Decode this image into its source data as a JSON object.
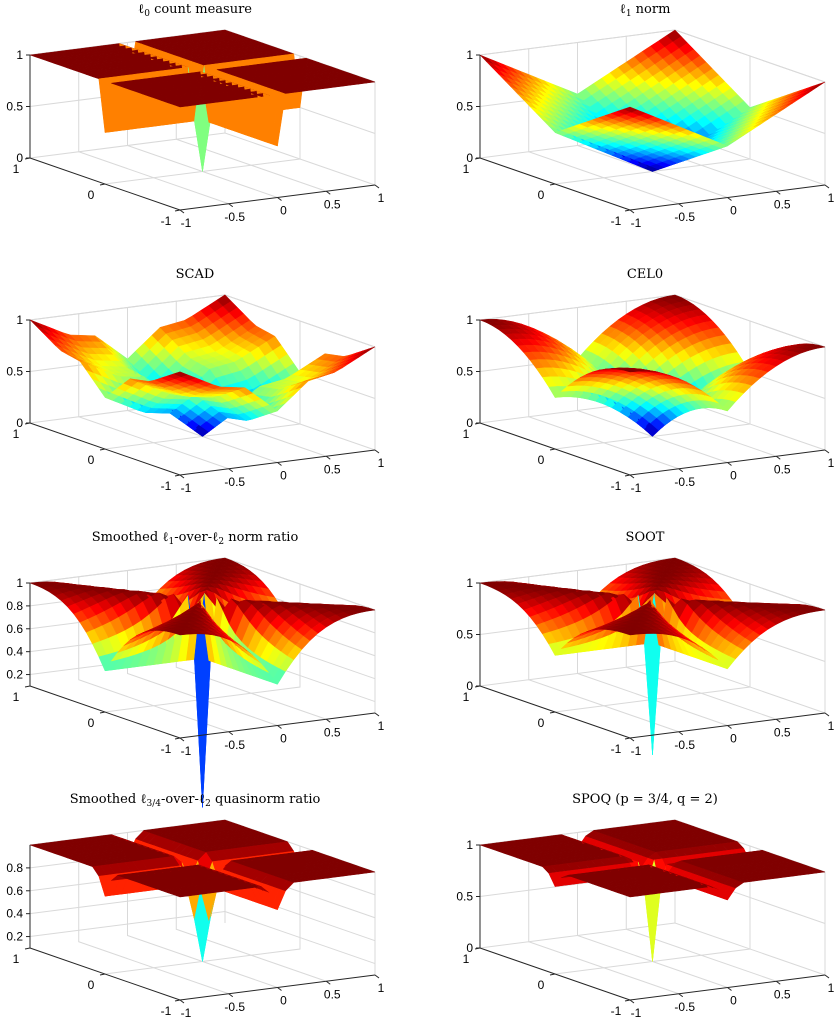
{
  "chart_data": [
    {
      "id": "l0",
      "type": "surface3d",
      "title_prefix": "ℓ",
      "title_sub": "0",
      "title_rest": " count measure",
      "xlim": [
        -1,
        1
      ],
      "ylim": [
        -1,
        1
      ],
      "zlim": [
        0,
        1
      ],
      "xticks": [
        "-1",
        "-0.5",
        "0",
        "0.5",
        "1"
      ],
      "yticks": [
        "-1",
        "0",
        "1"
      ],
      "zticks": [
        "0",
        "0.5",
        "1"
      ],
      "colormap": "jet",
      "shape": "count measure: 0 at origin, 1 elsewhere (0.5 on axes)",
      "peak_z": 1,
      "min_z": 0
    },
    {
      "id": "l1",
      "type": "surface3d",
      "title_prefix": "ℓ",
      "title_sub": "1",
      "title_rest": " norm",
      "xlim": [
        -1,
        1
      ],
      "ylim": [
        -1,
        1
      ],
      "zlim": [
        0,
        1
      ],
      "xticks": [
        "-1",
        "-0.5",
        "0",
        "0.5",
        "1"
      ],
      "yticks": [
        "-1",
        "0",
        "1"
      ],
      "zticks": [
        "0",
        "0.5",
        "1"
      ],
      "colormap": "jet",
      "shape": "(|x|+|y|)/2",
      "peak_z": 1,
      "min_z": 0
    },
    {
      "id": "scad",
      "type": "surface3d",
      "title": "SCAD",
      "xlim": [
        -1,
        1
      ],
      "ylim": [
        -1,
        1
      ],
      "zlim": [
        0,
        1
      ],
      "xticks": [
        "-1",
        "-0.5",
        "0",
        "0.5",
        "1"
      ],
      "yticks": [
        "-1",
        "0",
        "1"
      ],
      "zticks": [
        "0",
        "0.5",
        "1"
      ],
      "colormap": "jet",
      "shape": "SCAD penalty",
      "peak_z": 1,
      "min_z": 0
    },
    {
      "id": "cel0",
      "type": "surface3d",
      "title": "CEL0",
      "xlim": [
        -1,
        1
      ],
      "ylim": [
        -1,
        1
      ],
      "zlim": [
        0,
        1
      ],
      "xticks": [
        "-1",
        "-0.5",
        "0",
        "0.5",
        "1"
      ],
      "yticks": [
        "-1",
        "0",
        "1"
      ],
      "zticks": [
        "0",
        "0.5",
        "1"
      ],
      "colormap": "jet",
      "shape": "CEL0 penalty",
      "peak_z": 1,
      "min_z": 0
    },
    {
      "id": "l1l2",
      "type": "surface3d",
      "title_prefix": "Smoothed ℓ",
      "title_sub": "1",
      "title_mid": "-over-ℓ",
      "title_sub2": "2",
      "title_rest": " norm ratio",
      "xlim": [
        -1,
        1
      ],
      "ylim": [
        -1,
        1
      ],
      "zlim": [
        0.1,
        1
      ],
      "xticks": [
        "-1",
        "-0.5",
        "0",
        "0.5",
        "1"
      ],
      "yticks": [
        "-1",
        "0",
        "1"
      ],
      "zticks": [
        "0.2",
        "0.4",
        "0.6",
        "0.8",
        "1"
      ],
      "colormap": "jet",
      "shape": "smoothed l1/l2 ratio",
      "peak_z": 1,
      "min_z": 0.1
    },
    {
      "id": "soot",
      "type": "surface3d",
      "title": "SOOT",
      "xlim": [
        -1,
        1
      ],
      "ylim": [
        -1,
        1
      ],
      "zlim": [
        0,
        1
      ],
      "xticks": [
        "-1",
        "-0.5",
        "0",
        "0.5",
        "1"
      ],
      "yticks": [
        "-1",
        "0",
        "1"
      ],
      "zticks": [
        "0",
        "0.5",
        "1"
      ],
      "colormap": "jet",
      "shape": "SOOT",
      "peak_z": 1,
      "min_z": 0
    },
    {
      "id": "l34",
      "type": "surface3d",
      "title_prefix": "Smoothed ℓ",
      "title_sub": "3/4",
      "title_mid": "-over-ℓ",
      "title_sub2": "2",
      "title_rest": " quasinorm ratio",
      "xlim": [
        -1,
        1
      ],
      "ylim": [
        -1,
        1
      ],
      "zlim": [
        0.1,
        1
      ],
      "xticks": [
        "-1",
        "-0.5",
        "0",
        "0.5",
        "1"
      ],
      "yticks": [
        "-1",
        "0",
        "1"
      ],
      "zticks": [
        "0.2",
        "0.4",
        "0.6",
        "0.8"
      ],
      "colormap": "jet",
      "shape": "smoothed l3/4 over l2",
      "peak_z": 1,
      "min_z": 0.1
    },
    {
      "id": "spoq",
      "type": "surface3d",
      "title": "SPOQ (p = 3/4, q = 2)",
      "xlim": [
        -1,
        1
      ],
      "ylim": [
        -1,
        1
      ],
      "zlim": [
        0,
        1
      ],
      "xticks": [
        "-1",
        "-0.5",
        "0",
        "0.5",
        "1"
      ],
      "yticks": [
        "-1",
        "0",
        "1"
      ],
      "zticks": [
        "0",
        "0.5",
        "1"
      ],
      "colormap": "jet",
      "shape": "SPOQ",
      "peak_z": 1,
      "min_z": 0
    }
  ]
}
